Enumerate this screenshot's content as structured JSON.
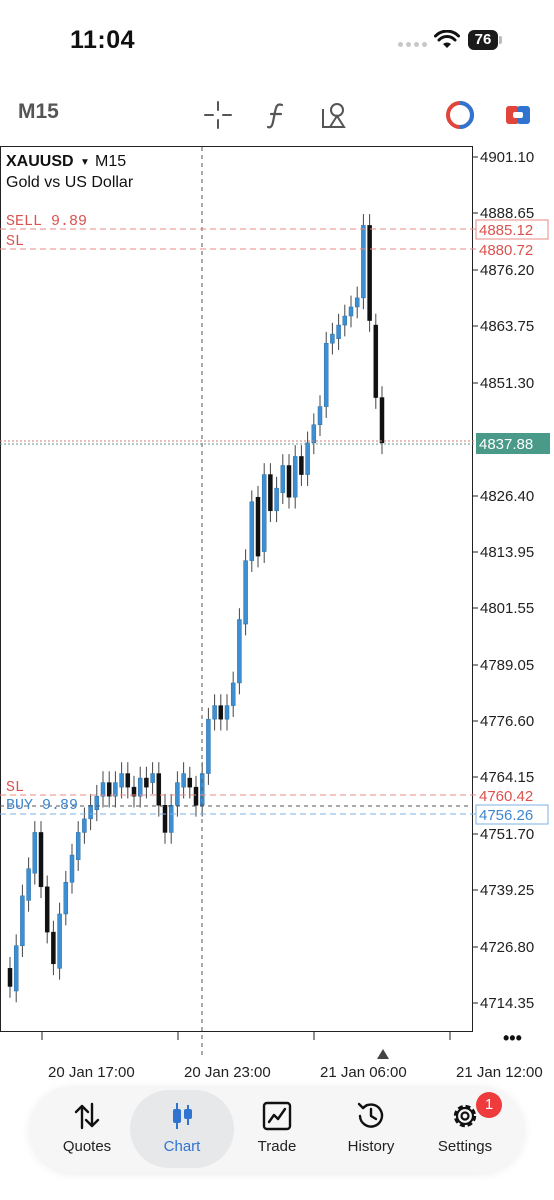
{
  "status_bar": {
    "time": "11:04",
    "battery": "76"
  },
  "toolbar": {
    "timeframe": "M15",
    "icons": [
      "crosshair-icon",
      "function-icon",
      "objects-icon",
      "account-icon",
      "one-click-trading-icon"
    ]
  },
  "chart": {
    "symbol": "XAUUSD",
    "symbol_timeframe": "M15",
    "description": "Gold vs US Dollar",
    "price_ticks": [
      "4901.10",
      "4888.65",
      "4876.20",
      "4863.75",
      "4851.30",
      "4826.40",
      "4813.95",
      "4801.55",
      "4789.05",
      "4776.60",
      "4764.15",
      "4751.70",
      "4739.25",
      "4726.80",
      "4714.35"
    ],
    "time_ticks": [
      "20 Jan 17:00",
      "20 Jan 23:00",
      "21 Jan 06:00",
      "21 Jan 12:00"
    ],
    "sell_label": "SELL 9.89",
    "sell_price": "4885.12",
    "sell_sl_label": "SL",
    "sell_sl_price": "4880.72",
    "current_price": "4837.88",
    "buy_sl_label": "SL",
    "buy_sl_price": "4760.42",
    "buy_label": "BUY 9.89",
    "buy_price": "4756.26",
    "more_label": "•••",
    "colors": {
      "bull": "#3d8fd1",
      "bear": "#111111",
      "sell": "#d9534f",
      "buy": "#3f86cf",
      "current": "#4a9a8a"
    }
  },
  "nav": {
    "items": [
      {
        "label": "Quotes",
        "icon": "quotes-arrows-icon"
      },
      {
        "label": "Chart",
        "icon": "candles-icon"
      },
      {
        "label": "Trade",
        "icon": "trade-chart-icon"
      },
      {
        "label": "History",
        "icon": "history-clock-icon"
      },
      {
        "label": "Settings",
        "icon": "settings-gear-icon"
      }
    ],
    "active": "Chart",
    "settings_badge": "1"
  }
}
